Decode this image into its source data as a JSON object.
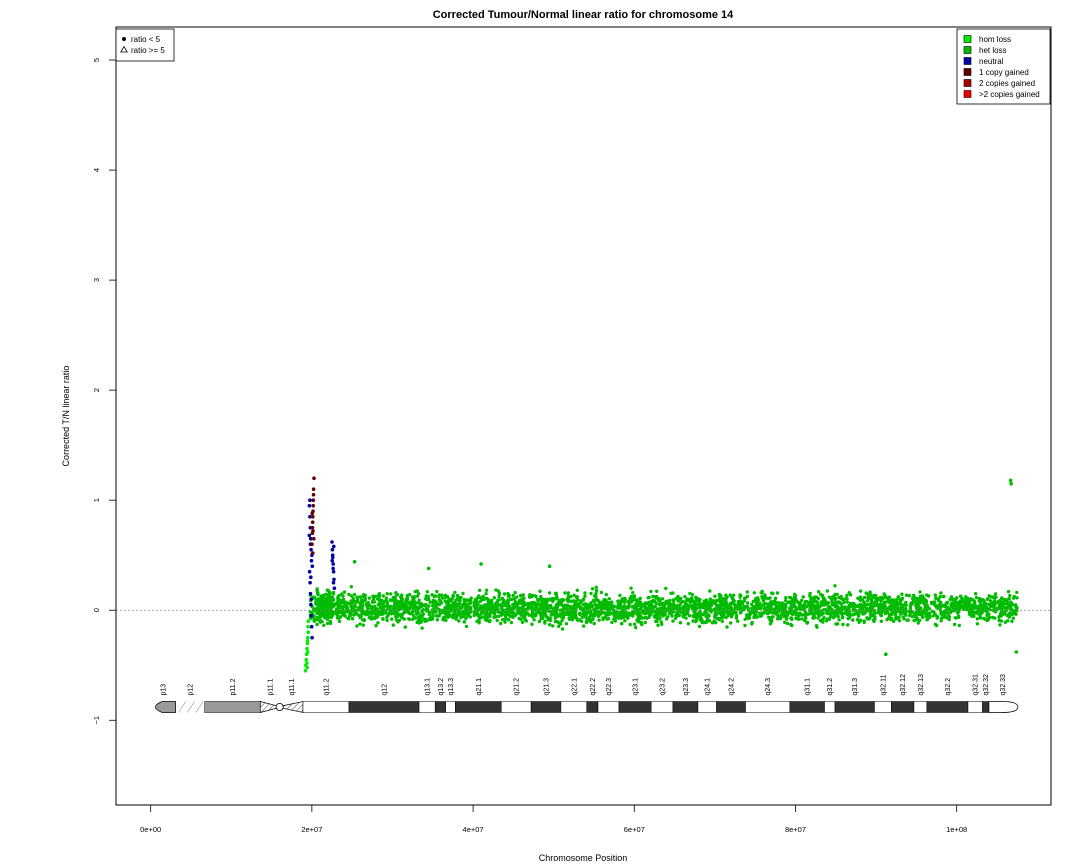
{
  "chart_data": {
    "type": "scatter",
    "title": "Corrected Tumour/Normal linear ratio for chromosome  14",
    "xlabel": "Chromosome Position",
    "ylabel": "Corrected T/N linear ratio",
    "xlim": [
      -4300000,
      111700000
    ],
    "ylim": [
      -1.77,
      5.3
    ],
    "x_ticks": [
      {
        "value": 0,
        "label": "0e+00"
      },
      {
        "value": 20000000,
        "label": "2e+07"
      },
      {
        "value": 40000000,
        "label": "4e+07"
      },
      {
        "value": 60000000,
        "label": "6e+07"
      },
      {
        "value": 80000000,
        "label": "8e+07"
      },
      {
        "value": 100000000,
        "label": "1e+08"
      }
    ],
    "y_ticks": [
      {
        "value": -1,
        "label": "−1"
      },
      {
        "value": 0,
        "label": "0"
      },
      {
        "value": 1,
        "label": "1"
      },
      {
        "value": 2,
        "label": "2"
      },
      {
        "value": 3,
        "label": "3"
      },
      {
        "value": 4,
        "label": "4"
      },
      {
        "value": 5,
        "label": "5"
      }
    ],
    "reference_line": {
      "y": 0,
      "style": "dotted",
      "color": "#888888"
    },
    "shape_legend": {
      "position": "top-left",
      "entries": [
        {
          "symbol": "circle",
          "label": "ratio < 5"
        },
        {
          "symbol": "triangle",
          "label": "ratio >= 5"
        }
      ]
    },
    "color_legend": {
      "position": "top-right",
      "entries": [
        {
          "label": "hom loss",
          "color": "#00ee00"
        },
        {
          "label": "het loss",
          "color": "#00bb00"
        },
        {
          "label": "neutral",
          "color": "#0000aa"
        },
        {
          "label": "1 copy gained",
          "color": "#660000"
        },
        {
          "label": "2 copies gained",
          "color": "#aa0000"
        },
        {
          "label": ">2 copies gained",
          "color": "#ee0000"
        }
      ]
    },
    "series": [
      {
        "name": "hom loss",
        "color": "#00ee00",
        "points": [
          [
            19200000,
            -0.55
          ],
          [
            19250000,
            -0.5
          ],
          [
            19300000,
            -0.45
          ],
          [
            19350000,
            -0.4
          ],
          [
            19400000,
            -0.35
          ],
          [
            19450000,
            -0.3
          ],
          [
            19500000,
            -0.25
          ],
          [
            19550000,
            -0.2
          ],
          [
            19420000,
            -0.52
          ],
          [
            19480000,
            -0.38
          ],
          [
            19520000,
            -0.15
          ],
          [
            19380000,
            -0.48
          ],
          [
            19460000,
            -0.28
          ],
          [
            19540000,
            -0.1
          ]
        ]
      },
      {
        "name": "het loss",
        "color": "#00bb00",
        "segments": [
          {
            "x_start": 19800000,
            "x_end": 107500000,
            "n": 3400,
            "mean": 0.02,
            "spread": 0.12
          },
          {
            "x_start": 20600000,
            "x_end": 22600000,
            "n": 90,
            "mean": 0.05,
            "spread": 0.14
          }
        ],
        "points": [
          [
            106700000,
            1.18
          ],
          [
            106750000,
            1.15
          ],
          [
            91200000,
            -0.4
          ],
          [
            107400000,
            -0.38
          ],
          [
            34500000,
            0.38
          ],
          [
            41000000,
            0.42
          ],
          [
            49500000,
            0.4
          ],
          [
            25300000,
            0.44
          ]
        ]
      },
      {
        "name": "neutral",
        "color": "#0000aa",
        "points": [
          [
            19700000,
            0.95
          ],
          [
            19750000,
            0.85
          ],
          [
            19800000,
            0.75
          ],
          [
            19850000,
            0.65
          ],
          [
            19900000,
            0.55
          ],
          [
            19950000,
            0.45
          ],
          [
            19720000,
            0.35
          ],
          [
            19780000,
            0.25
          ],
          [
            19830000,
            0.15
          ],
          [
            19880000,
            0.05
          ],
          [
            19930000,
            -0.05
          ],
          [
            19980000,
            -0.15
          ],
          [
            20030000,
            -0.25
          ],
          [
            19760000,
            1.0
          ],
          [
            19820000,
            0.6
          ],
          [
            19870000,
            0.3
          ],
          [
            19920000,
            0.1
          ],
          [
            20000000,
            0.5
          ],
          [
            20050000,
            0.4
          ],
          [
            19680000,
            0.68
          ],
          [
            22500000,
            0.62
          ],
          [
            22550000,
            0.55
          ],
          [
            22600000,
            0.48
          ],
          [
            22650000,
            0.42
          ],
          [
            22700000,
            0.35
          ],
          [
            22750000,
            0.28
          ],
          [
            22800000,
            0.2
          ],
          [
            22580000,
            0.5
          ],
          [
            22630000,
            0.38
          ],
          [
            22680000,
            0.25
          ],
          [
            22520000,
            0.45
          ],
          [
            22720000,
            0.58
          ]
        ]
      },
      {
        "name": "1 copy gained",
        "color": "#660000",
        "points": [
          [
            20020000,
            0.6
          ],
          [
            20060000,
            0.7
          ],
          [
            20100000,
            0.8
          ],
          [
            20140000,
            0.9
          ],
          [
            20180000,
            1.0
          ],
          [
            20220000,
            1.1
          ],
          [
            20260000,
            1.2
          ],
          [
            20080000,
            0.75
          ],
          [
            20120000,
            0.85
          ],
          [
            20160000,
            0.95
          ],
          [
            20200000,
            1.05
          ],
          [
            20240000,
            0.65
          ],
          [
            20040000,
            0.88
          ],
          [
            20140000,
            0.72
          ],
          [
            20110000,
            0.52
          ]
        ]
      }
    ],
    "ideogram": {
      "bands": [
        {
          "label": "p13",
          "start": 0,
          "end": 3100000,
          "stain": "gvar"
        },
        {
          "label": "p12",
          "start": 3100000,
          "end": 6700000,
          "stain": "stalk"
        },
        {
          "label": "p11.2",
          "start": 6700000,
          "end": 13600000,
          "stain": "gvar"
        },
        {
          "label": "p11.1",
          "start": 13600000,
          "end": 16000000,
          "stain": "acen"
        },
        {
          "label": "q11.1",
          "start": 16000000,
          "end": 18900000,
          "stain": "acen"
        },
        {
          "label": "q11.2",
          "start": 18900000,
          "end": 24600000,
          "stain": "gneg"
        },
        {
          "label": "q12",
          "start": 24600000,
          "end": 33300000,
          "stain": "gpos100"
        },
        {
          "label": "q13.1",
          "start": 33300000,
          "end": 35300000,
          "stain": "gneg"
        },
        {
          "label": "q13.2",
          "start": 35300000,
          "end": 36600000,
          "stain": "gpos50"
        },
        {
          "label": "q13.3",
          "start": 36600000,
          "end": 37800000,
          "stain": "gneg"
        },
        {
          "label": "q21.1",
          "start": 37800000,
          "end": 43500000,
          "stain": "gpos100"
        },
        {
          "label": "q21.2",
          "start": 43500000,
          "end": 47200000,
          "stain": "gneg"
        },
        {
          "label": "q21.3",
          "start": 47200000,
          "end": 50900000,
          "stain": "gpos100"
        },
        {
          "label": "q22.1",
          "start": 50900000,
          "end": 54100000,
          "stain": "gneg"
        },
        {
          "label": "q22.2",
          "start": 54100000,
          "end": 55500000,
          "stain": "gpos25"
        },
        {
          "label": "q22.3",
          "start": 55500000,
          "end": 58100000,
          "stain": "gneg"
        },
        {
          "label": "q23.1",
          "start": 58100000,
          "end": 62100000,
          "stain": "gpos75"
        },
        {
          "label": "q23.2",
          "start": 62100000,
          "end": 64800000,
          "stain": "gneg"
        },
        {
          "label": "q23.3",
          "start": 64800000,
          "end": 67900000,
          "stain": "gpos50"
        },
        {
          "label": "q24.1",
          "start": 67900000,
          "end": 70200000,
          "stain": "gneg"
        },
        {
          "label": "q24.2",
          "start": 70200000,
          "end": 73800000,
          "stain": "gpos50"
        },
        {
          "label": "q24.3",
          "start": 73800000,
          "end": 79300000,
          "stain": "gneg"
        },
        {
          "label": "q31.1",
          "start": 79300000,
          "end": 83600000,
          "stain": "gpos100"
        },
        {
          "label": "q31.2",
          "start": 83600000,
          "end": 84900000,
          "stain": "gneg"
        },
        {
          "label": "q31.3",
          "start": 84900000,
          "end": 89800000,
          "stain": "gpos100"
        },
        {
          "label": "q32.11",
          "start": 89800000,
          "end": 91900000,
          "stain": "gneg"
        },
        {
          "label": "q32.12",
          "start": 91900000,
          "end": 94700000,
          "stain": "gpos25"
        },
        {
          "label": "q32.13",
          "start": 94700000,
          "end": 96300000,
          "stain": "gneg"
        },
        {
          "label": "q32.2",
          "start": 96300000,
          "end": 101400000,
          "stain": "gpos50"
        },
        {
          "label": "q32.31",
          "start": 101400000,
          "end": 103200000,
          "stain": "gneg"
        },
        {
          "label": "q32.32",
          "start": 103200000,
          "end": 104000000,
          "stain": "gpos50"
        },
        {
          "label": "q32.33",
          "start": 104000000,
          "end": 107349540,
          "stain": "gneg"
        }
      ]
    }
  }
}
